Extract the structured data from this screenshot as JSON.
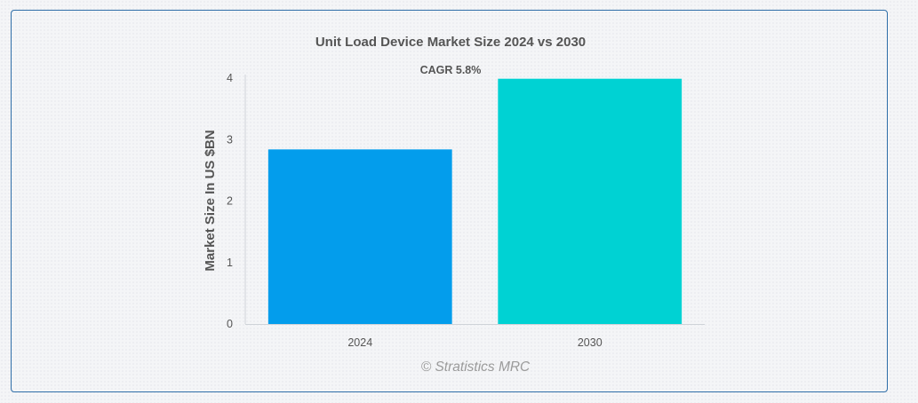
{
  "chart_data": {
    "type": "bar",
    "title": "Unit Load Device Market Size 2024 vs 2030",
    "annotation": "CAGR 5.8%",
    "categories": [
      "2024",
      "2030"
    ],
    "values": [
      2.84,
      3.99
    ],
    "colors": [
      "#039dec",
      "#00d2d3"
    ],
    "xlabel": "",
    "ylabel": "Market Size In US $BN",
    "ylim": [
      0,
      4
    ],
    "yticks": [
      "0",
      "1",
      "2",
      "3",
      "4"
    ],
    "grid": false,
    "credit": "© Stratistics MRC"
  }
}
